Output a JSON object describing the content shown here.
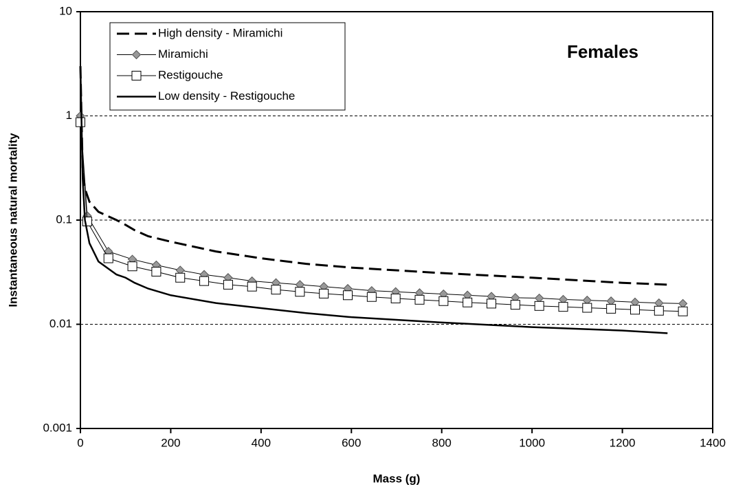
{
  "chart_data": {
    "type": "line",
    "title": "Females",
    "x_label": "Mass (g)",
    "y_label": "Instantaneous natural mortality",
    "xlim": [
      0,
      1400
    ],
    "xticks": [
      0,
      200,
      400,
      600,
      800,
      1000,
      1200,
      1400
    ],
    "ylim": [
      0.001,
      10
    ],
    "yticks": [
      0.001,
      0.01,
      0.1,
      1,
      10
    ],
    "y_scale": "log",
    "grid": true,
    "legend": "upper-left",
    "series": [
      {
        "name": "High density - Miramichi",
        "color": "#000000",
        "line": "dashed",
        "marker": "none",
        "x": [
          0,
          5,
          10,
          20,
          40,
          80,
          100,
          120,
          150,
          200,
          300,
          400,
          500,
          600,
          800,
          1000,
          1200,
          1300
        ],
        "values": [
          3,
          0.3,
          0.2,
          0.15,
          0.12,
          0.1,
          0.09,
          0.08,
          0.07,
          0.062,
          0.05,
          0.043,
          0.038,
          0.035,
          0.031,
          0.028,
          0.025,
          0.024
        ]
      },
      {
        "name": "Miramichi",
        "color": "#000000",
        "line": "solid",
        "marker": "diamond",
        "marker_color": "#999999",
        "x": [
          0,
          15,
          62,
          115,
          168,
          221,
          274,
          327,
          380,
          433,
          486,
          539,
          592,
          645,
          698,
          751,
          804,
          857,
          910,
          963,
          1016,
          1069,
          1122,
          1175,
          1228,
          1281,
          1334
        ],
        "values": [
          1.0,
          0.11,
          0.05,
          0.042,
          0.037,
          0.033,
          0.03,
          0.028,
          0.026,
          0.025,
          0.024,
          0.023,
          0.022,
          0.021,
          0.0205,
          0.02,
          0.0195,
          0.019,
          0.0185,
          0.018,
          0.0178,
          0.0173,
          0.017,
          0.0167,
          0.0163,
          0.016,
          0.0158
        ]
      },
      {
        "name": "Restigouche",
        "color": "#000000",
        "line": "solid",
        "marker": "square",
        "marker_color": "#ffffff",
        "x": [
          0,
          15,
          62,
          115,
          168,
          221,
          274,
          327,
          380,
          433,
          486,
          539,
          592,
          645,
          698,
          751,
          804,
          857,
          910,
          963,
          1016,
          1069,
          1122,
          1175,
          1228,
          1281,
          1334
        ],
        "values": [
          0.87,
          0.097,
          0.043,
          0.036,
          0.032,
          0.028,
          0.026,
          0.024,
          0.023,
          0.0215,
          0.0205,
          0.0197,
          0.019,
          0.0183,
          0.0177,
          0.0172,
          0.0167,
          0.0162,
          0.0158,
          0.0154,
          0.015,
          0.0147,
          0.0144,
          0.0141,
          0.0138,
          0.0135,
          0.0133
        ]
      },
      {
        "name": "Low density - Restigouche",
        "color": "#000000",
        "line": "solid-thick",
        "marker": "none",
        "x": [
          0,
          5,
          10,
          20,
          40,
          80,
          100,
          120,
          150,
          200,
          300,
          400,
          500,
          600,
          800,
          1000,
          1200,
          1300
        ],
        "values": [
          3,
          0.25,
          0.1,
          0.06,
          0.04,
          0.03,
          0.028,
          0.025,
          0.022,
          0.019,
          0.016,
          0.0143,
          0.0128,
          0.0117,
          0.0104,
          0.0094,
          0.0087,
          0.0082
        ]
      }
    ]
  }
}
